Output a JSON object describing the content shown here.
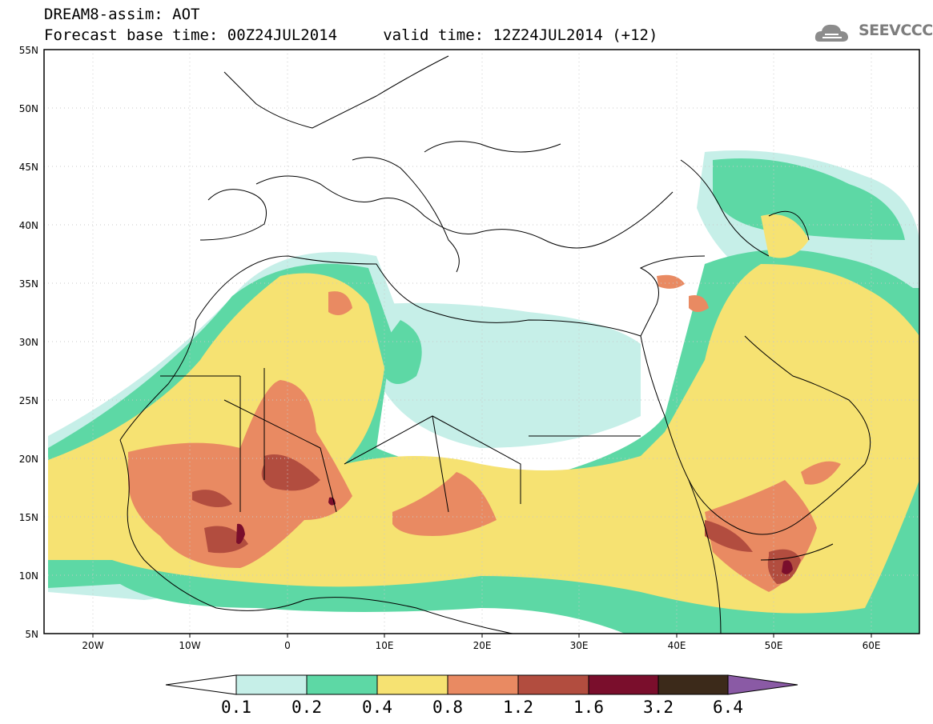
{
  "title": {
    "line1": "DREAM8-assim: AOT",
    "line2": "Forecast base time: 00Z24JUL2014     valid time: 12Z24JUL2014 (+12)"
  },
  "logo": {
    "text": "SEEVCCC"
  },
  "map": {
    "lon_range": [
      -25,
      65
    ],
    "lat_range": [
      5,
      55
    ],
    "x_ticks": [
      "20W",
      "10W",
      "0",
      "10E",
      "20E",
      "30E",
      "40E",
      "50E",
      "60E"
    ],
    "y_ticks": [
      "55N",
      "50N",
      "45N",
      "40N",
      "35N",
      "30N",
      "25N",
      "20N",
      "15N",
      "10N",
      "5N"
    ]
  },
  "colorbar": {
    "labels": [
      "0.1",
      "0.2",
      "0.4",
      "0.8",
      "1.2",
      "1.6",
      "3.2",
      "6.4"
    ],
    "colors": {
      "under": "#ffffff",
      "b01_02": "#c6efe8",
      "b02_04": "#5dd8a5",
      "b04_08": "#f6e272",
      "b08_12": "#e98a62",
      "b12_16": "#b24d3f",
      "b16_32": "#7a0e2c",
      "b32_64": "#3c2a1a",
      "over": "#8a5aa5"
    }
  }
}
